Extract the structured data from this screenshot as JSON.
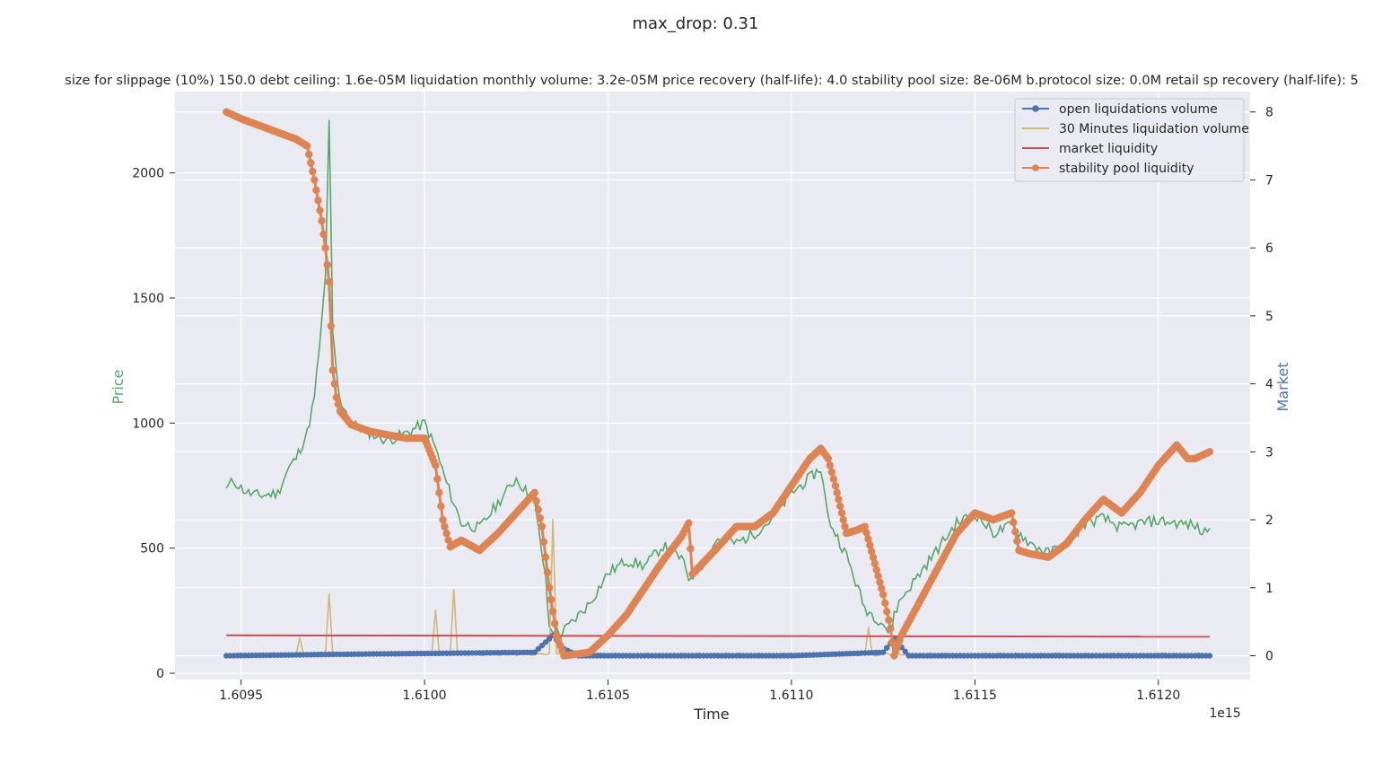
{
  "chart_data": {
    "type": "line",
    "suptitle": "max_drop: 0.31",
    "title": "size for slippage (10%) 150.0 debt ceiling: 1.6e-05M liquidation monthly volume: 3.2e-05M price recovery (half-life): 4.0 stability pool size: 8e-06M b.protocol size: 0.0M retail sp recovery (half-life): 5",
    "xlabel": "Time",
    "x_offset_label": "1e15",
    "ylabel_left": "Price",
    "ylabel_right": "Market",
    "xlim": [
      1.60932,
      1.61225
    ],
    "ylim_left": [
      -25,
      2325
    ],
    "ylim_right": [
      -0.35,
      8.3
    ],
    "x_ticks": [
      1.6095,
      1.61,
      1.6105,
      1.611,
      1.6115,
      1.612
    ],
    "x_tick_labels": [
      "1.6095",
      "1.6100",
      "1.6105",
      "1.6110",
      "1.6115",
      "1.6120"
    ],
    "y_left_ticks": [
      0,
      500,
      1000,
      1500,
      2000
    ],
    "y_left_tick_labels": [
      "0",
      "500",
      "1000",
      "1500",
      "2000"
    ],
    "y_right_ticks": [
      0,
      1,
      2,
      3,
      4,
      5,
      6,
      7,
      8
    ],
    "y_right_tick_labels": [
      "0",
      "1",
      "2",
      "3",
      "4",
      "5",
      "6",
      "7",
      "8"
    ],
    "grid": true,
    "legend_position": "upper-right",
    "colors": {
      "price": "#55a868",
      "open_liquidations": "#4c72b0",
      "liq_volume_30min": "#ccb974",
      "market_liquidity": "#c44e52",
      "stability_pool": "#dd8452",
      "background": "#eaeaf2",
      "grid": "#ffffff"
    },
    "series": [
      {
        "name": "Price",
        "axis": "left",
        "key": "price",
        "x": [
          1.60946,
          1.60948,
          1.6095,
          1.60952,
          1.60955,
          1.6096,
          1.60963,
          1.60965,
          1.60968,
          1.6097,
          1.60972,
          1.60973,
          1.60974,
          1.60975,
          1.60976,
          1.60977,
          1.60978,
          1.6098,
          1.60985,
          1.6099,
          1.60995,
          1.61,
          1.61003,
          1.61006,
          1.61008,
          1.6101,
          1.61015,
          1.6102,
          1.61025,
          1.6103,
          1.61033,
          1.61034,
          1.61036,
          1.61037,
          1.6104,
          1.61045,
          1.6105,
          1.61055,
          1.6106,
          1.61065,
          1.6107,
          1.61072,
          1.61075,
          1.6108,
          1.61085,
          1.6109,
          1.61095,
          1.611,
          1.61105,
          1.61108,
          1.6111,
          1.61112,
          1.61115,
          1.6112,
          1.61125,
          1.61127,
          1.61128,
          1.6113,
          1.61135,
          1.6114,
          1.61145,
          1.6115,
          1.61155,
          1.6116,
          1.61165,
          1.6117,
          1.61175,
          1.6118,
          1.61185,
          1.6119,
          1.61195,
          1.612,
          1.61205,
          1.6121,
          1.61212,
          1.61214
        ],
        "values": [
          740,
          770,
          740,
          720,
          710,
          720,
          820,
          860,
          960,
          1100,
          1400,
          1580,
          2220,
          1350,
          1200,
          1080,
          1070,
          1000,
          960,
          930,
          960,
          1000,
          900,
          760,
          680,
          600,
          580,
          680,
          780,
          680,
          380,
          180,
          170,
          155,
          200,
          280,
          400,
          450,
          430,
          510,
          460,
          380,
          420,
          540,
          520,
          560,
          620,
          720,
          780,
          820,
          620,
          560,
          470,
          260,
          200,
          150,
          240,
          300,
          400,
          500,
          600,
          640,
          560,
          590,
          520,
          480,
          520,
          600,
          620,
          580,
          600,
          610,
          600,
          590,
          560,
          580
        ]
      },
      {
        "name": "open liquidations volume",
        "axis": "right",
        "key": "open_liquidations",
        "x": [
          1.60946,
          1.60975,
          1.6103,
          1.61035,
          1.61038,
          1.61042,
          1.611,
          1.61125,
          1.61128,
          1.61132,
          1.61214
        ],
        "values": [
          0.0,
          0.02,
          0.05,
          0.3,
          0.1,
          0.0,
          0.0,
          0.05,
          0.25,
          0.0,
          0.0
        ]
      },
      {
        "name": "30 Minutes liquidation volume",
        "axis": "right",
        "key": "liq_volume_30min",
        "x": [
          1.60946,
          1.60965,
          1.60966,
          1.60967,
          1.60973,
          1.60974,
          1.60975,
          1.61002,
          1.61003,
          1.61004,
          1.61007,
          1.61008,
          1.61009,
          1.61034,
          1.61035,
          1.61036,
          1.6112,
          1.61121,
          1.61122,
          1.61214
        ],
        "values": [
          0.0,
          0.0,
          0.25,
          0.0,
          0.0,
          0.9,
          0.0,
          0.0,
          0.65,
          0.0,
          0.0,
          0.95,
          0.0,
          0.0,
          2.0,
          0.0,
          0.0,
          0.4,
          0.0,
          0.0
        ]
      },
      {
        "name": "market liquidity",
        "axis": "right",
        "key": "market_liquidity",
        "x": [
          1.60946,
          1.61214
        ],
        "values": [
          0.3,
          0.28
        ]
      },
      {
        "name": "stability pool liquidity",
        "axis": "right",
        "key": "stability_pool",
        "x": [
          1.60946,
          1.6095,
          1.60955,
          1.6096,
          1.60965,
          1.60968,
          1.6097,
          1.60972,
          1.60973,
          1.60974,
          1.60975,
          1.60976,
          1.60977,
          1.6098,
          1.60985,
          1.6099,
          1.60995,
          1.61,
          1.61003,
          1.61005,
          1.61007,
          1.6101,
          1.61015,
          1.6102,
          1.61025,
          1.6103,
          1.61032,
          1.61034,
          1.61036,
          1.61038,
          1.61045,
          1.6105,
          1.61055,
          1.6106,
          1.61065,
          1.6107,
          1.61072,
          1.61073,
          1.6108,
          1.61085,
          1.6109,
          1.61095,
          1.611,
          1.61105,
          1.61108,
          1.6111,
          1.61112,
          1.61115,
          1.61118,
          1.6112,
          1.61125,
          1.61127,
          1.61128,
          1.6113,
          1.61135,
          1.6114,
          1.61145,
          1.6115,
          1.61155,
          1.6116,
          1.61162,
          1.61165,
          1.6117,
          1.61175,
          1.6118,
          1.61185,
          1.6119,
          1.61195,
          1.612,
          1.61205,
          1.61208,
          1.6121,
          1.61214
        ],
        "values": [
          8.0,
          7.9,
          7.8,
          7.7,
          7.6,
          7.5,
          7.0,
          6.4,
          6.0,
          5.5,
          4.2,
          3.8,
          3.6,
          3.4,
          3.3,
          3.25,
          3.2,
          3.2,
          2.8,
          2.0,
          1.6,
          1.7,
          1.55,
          1.8,
          2.1,
          2.4,
          1.9,
          1.0,
          0.3,
          0.0,
          0.05,
          0.3,
          0.6,
          1.0,
          1.4,
          1.75,
          1.95,
          1.2,
          1.6,
          1.9,
          1.9,
          2.1,
          2.5,
          2.9,
          3.05,
          2.9,
          2.5,
          1.8,
          1.85,
          1.9,
          0.9,
          0.4,
          0.0,
          0.3,
          0.8,
          1.3,
          1.8,
          2.1,
          2.0,
          2.1,
          1.55,
          1.5,
          1.45,
          1.65,
          2.0,
          2.3,
          2.1,
          2.4,
          2.8,
          3.1,
          2.9,
          2.9,
          3.0
        ]
      }
    ]
  }
}
